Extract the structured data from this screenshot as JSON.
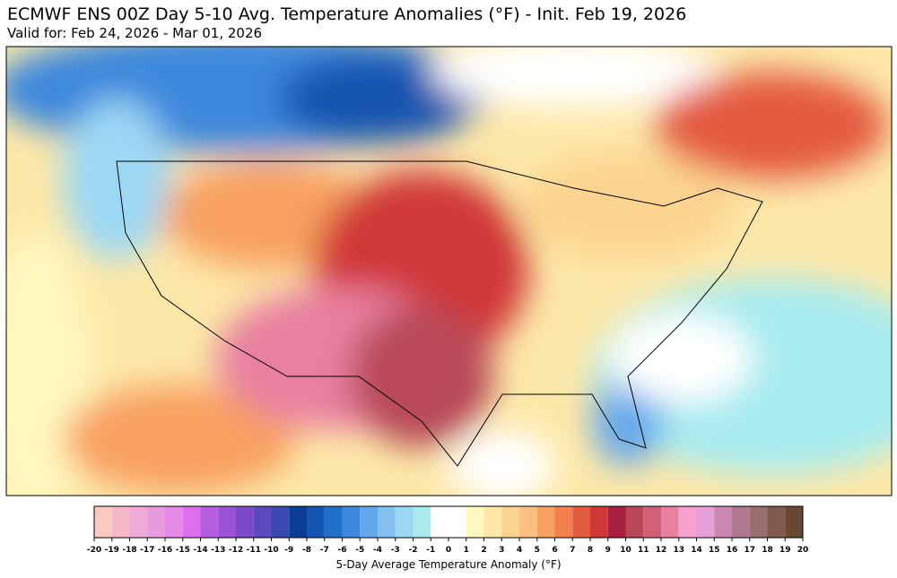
{
  "title": "ECMWF ENS 00Z Day 5-10 Avg. Temperature Anomalies (°F) - Init. Feb 19, 2026",
  "subtitle": "Valid for: Feb 24, 2026 - Mar 01, 2026",
  "colorbar": {
    "label": "5-Day Average Temperature Anomaly (°F)",
    "ticks": [
      -20,
      -19,
      -18,
      -17,
      -16,
      -15,
      -14,
      -13,
      -12,
      -11,
      -10,
      -9,
      -8,
      -7,
      -6,
      -5,
      -4,
      -3,
      -2,
      -1,
      0,
      1,
      2,
      3,
      4,
      5,
      6,
      7,
      8,
      9,
      10,
      11,
      12,
      13,
      14,
      15,
      16,
      17,
      18,
      19,
      20
    ],
    "colors": [
      "#fcc9c0",
      "#f6b8c8",
      "#eeaad8",
      "#e99be0",
      "#e48ae6",
      "#dc6ef0",
      "#b65ee0",
      "#9a52d6",
      "#7c4ac8",
      "#5d48c0",
      "#3a48b0",
      "#0a3e96",
      "#1554b0",
      "#2070c8",
      "#3d88dc",
      "#64a8ec",
      "#82c0f0",
      "#9cd8f4",
      "#a8ecf0",
      "#ffffff",
      "#ffffff",
      "#fff8c0",
      "#fde8a8",
      "#fcd490",
      "#fbc080",
      "#f8a060",
      "#f2804c",
      "#e45c40",
      "#d03838",
      "#a82040",
      "#b84858",
      "#d06078",
      "#e880a0",
      "#f8a0d0",
      "#e8a0d8",
      "#c888b0",
      "#b07890",
      "#987070",
      "#805850",
      "#684830"
    ]
  }
}
